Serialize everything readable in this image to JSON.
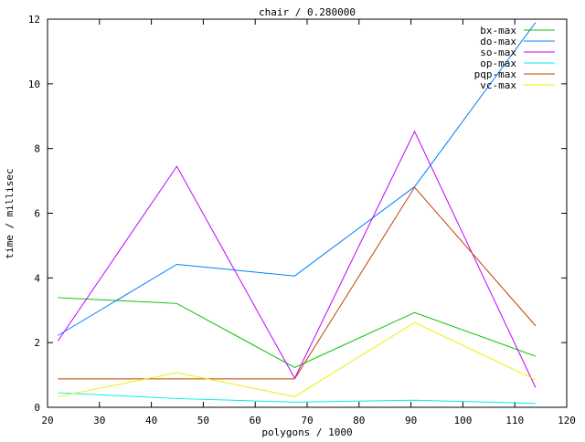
{
  "chart_data": {
    "type": "line",
    "title": "chair / 0.280000",
    "xlabel": "polygons / 1000",
    "ylabel": "time / millisec",
    "xlim": [
      20,
      120
    ],
    "ylim": [
      0,
      12
    ],
    "xticks": [
      20,
      30,
      40,
      50,
      60,
      70,
      80,
      90,
      100,
      110,
      120
    ],
    "yticks": [
      0,
      2,
      4,
      6,
      8,
      10,
      12
    ],
    "grid": false,
    "legend_position": "top-right",
    "x": [
      22.0,
      44.9,
      67.6,
      90.7,
      114.0
    ],
    "series": [
      {
        "name": "bx-max",
        "color": "#00c000",
        "values": [
          3.39,
          3.21,
          1.23,
          2.93,
          1.58
        ]
      },
      {
        "name": "do-max",
        "color": "#0080ff",
        "values": [
          2.22,
          4.42,
          4.06,
          6.82,
          11.9
        ]
      },
      {
        "name": "so-max",
        "color": "#c000ff",
        "values": [
          2.05,
          7.45,
          0.9,
          8.53,
          0.61
        ]
      },
      {
        "name": "op-max",
        "color": "#00eeee",
        "values": [
          0.45,
          0.27,
          0.16,
          0.22,
          0.12
        ]
      },
      {
        "name": "pqp-max",
        "color": "#c04000",
        "values": [
          0.88,
          0.88,
          0.88,
          6.8,
          2.52
        ]
      },
      {
        "name": "vc-max",
        "color": "#eeee00",
        "values": [
          0.33,
          1.07,
          0.33,
          2.62,
          0.85
        ]
      }
    ]
  }
}
